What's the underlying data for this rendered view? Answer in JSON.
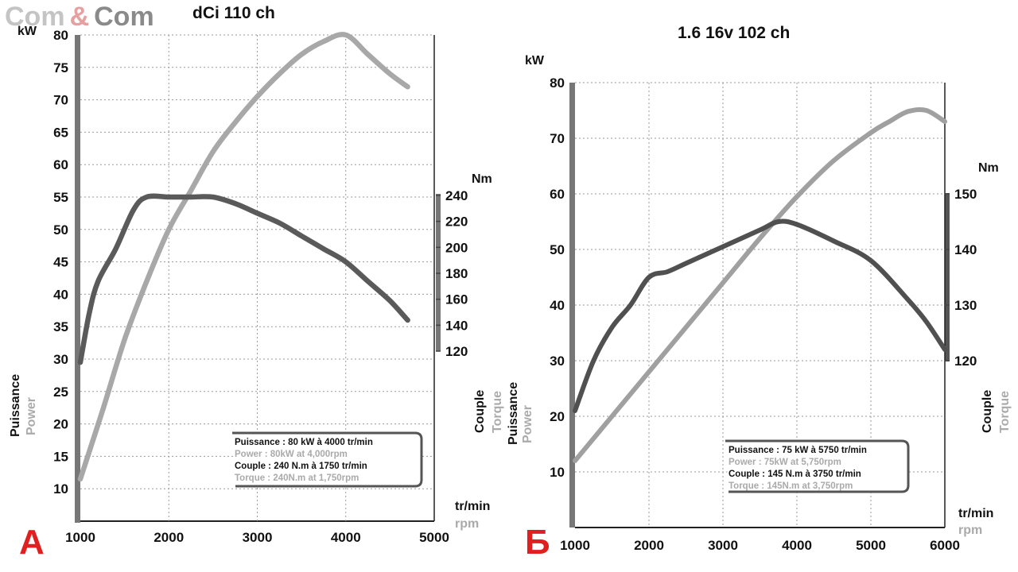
{
  "watermark": {
    "part1": "Com",
    "part2": "&",
    "part3": "Com"
  },
  "chart_data": [
    {
      "type": "line",
      "panel_letter": "А",
      "title": "dCi 110 ch",
      "x_unit_fr": "tr/min",
      "x_unit_en": "rpm",
      "left_unit": "kW",
      "right_unit": "Nm",
      "left_axis_label_fr": "Puissance",
      "left_axis_label_en": "Power",
      "right_axis_label_fr": "Couple",
      "right_axis_label_en": "Torque",
      "xlim": [
        1000,
        5000
      ],
      "ylim_left": [
        5,
        80
      ],
      "ylim_right": [
        120,
        240
      ],
      "x_ticks": [
        "1000",
        "2000",
        "3000",
        "4000",
        "5000"
      ],
      "left_ticks": [
        "10",
        "15",
        "20",
        "25",
        "30",
        "35",
        "40",
        "45",
        "50",
        "55",
        "60",
        "65",
        "70",
        "75",
        "80"
      ],
      "right_ticks": [
        "120",
        "140",
        "160",
        "180",
        "200",
        "220",
        "240"
      ],
      "series": [
        {
          "name": "Power",
          "axis": "left",
          "color": "#a8a8a8",
          "points": [
            [
              1000,
              11.5
            ],
            [
              1250,
              22
            ],
            [
              1500,
              33
            ],
            [
              1750,
              42
            ],
            [
              2000,
              50
            ],
            [
              2250,
              56
            ],
            [
              2500,
              62
            ],
            [
              2750,
              66.5
            ],
            [
              3000,
              70.5
            ],
            [
              3250,
              74
            ],
            [
              3500,
              77
            ],
            [
              3750,
              79
            ],
            [
              4000,
              80
            ],
            [
              4250,
              77
            ],
            [
              4500,
              74
            ],
            [
              4700,
              72
            ]
          ]
        },
        {
          "name": "Torque",
          "axis": "left",
          "color": "#5a5a5a",
          "points": [
            [
              1000,
              29.5
            ],
            [
              1100,
              37
            ],
            [
              1200,
              42
            ],
            [
              1400,
              47
            ],
            [
              1600,
              53
            ],
            [
              1750,
              55
            ],
            [
              2000,
              55
            ],
            [
              2250,
              55
            ],
            [
              2500,
              55
            ],
            [
              2750,
              54
            ],
            [
              3000,
              52.5
            ],
            [
              3250,
              51
            ],
            [
              3500,
              49
            ],
            [
              3750,
              47
            ],
            [
              4000,
              45
            ],
            [
              4250,
              42
            ],
            [
              4500,
              39
            ],
            [
              4700,
              36
            ]
          ]
        }
      ],
      "legend": {
        "line1": "Puissance : 80 kW à 4000 tr/min",
        "line2": "Power : 80kW at 4,000rpm",
        "line3": "Couple : 240 N.m à 1750 tr/min",
        "line4": "Torque : 240N.m at 1,750rpm"
      }
    },
    {
      "type": "line",
      "panel_letter": "Б",
      "title": "1.6 16v 102 ch",
      "x_unit_fr": "tr/min",
      "x_unit_en": "rpm",
      "left_unit": "kW",
      "right_unit": "Nm",
      "left_axis_label_fr": "Puissance",
      "left_axis_label_en": "Power",
      "right_axis_label_fr": "Couple",
      "right_axis_label_en": "Torque",
      "xlim": [
        1000,
        6000
      ],
      "ylim_left": [
        0,
        80
      ],
      "ylim_right": [
        120,
        150
      ],
      "x_ticks": [
        "1000",
        "2000",
        "3000",
        "4000",
        "5000",
        "6000"
      ],
      "left_ticks": [
        "10",
        "20",
        "30",
        "40",
        "50",
        "60",
        "70",
        "80"
      ],
      "right_ticks": [
        "120",
        "130",
        "140",
        "150"
      ],
      "series": [
        {
          "name": "Power",
          "axis": "left",
          "color": "#a0a0a0",
          "points": [
            [
              1000,
              12
            ],
            [
              1500,
              20
            ],
            [
              2000,
              28
            ],
            [
              2500,
              36
            ],
            [
              3000,
              44
            ],
            [
              3500,
              52
            ],
            [
              4000,
              59.5
            ],
            [
              4500,
              66
            ],
            [
              5000,
              71
            ],
            [
              5250,
              73
            ],
            [
              5500,
              74.8
            ],
            [
              5750,
              75
            ],
            [
              6000,
              73
            ]
          ]
        },
        {
          "name": "Torque",
          "axis": "left",
          "color": "#505050",
          "points": [
            [
              1000,
              21
            ],
            [
              1250,
              30
            ],
            [
              1500,
              36
            ],
            [
              1750,
              40
            ],
            [
              2000,
              45
            ],
            [
              2250,
              46
            ],
            [
              2500,
              47.5
            ],
            [
              3000,
              50.5
            ],
            [
              3500,
              53.5
            ],
            [
              3750,
              55
            ],
            [
              4000,
              54.5
            ],
            [
              4500,
              51.5
            ],
            [
              5000,
              48
            ],
            [
              5500,
              41
            ],
            [
              5750,
              37
            ],
            [
              6000,
              32
            ]
          ]
        }
      ],
      "legend": {
        "line1": "Puissance : 75 kW à 5750 tr/min",
        "line2": "Power : 75kW at 5,750rpm",
        "line3": "Couple : 145 N.m à 3750 tr/min",
        "line4": "Torque : 145N.m at 3,750rpm"
      }
    }
  ]
}
